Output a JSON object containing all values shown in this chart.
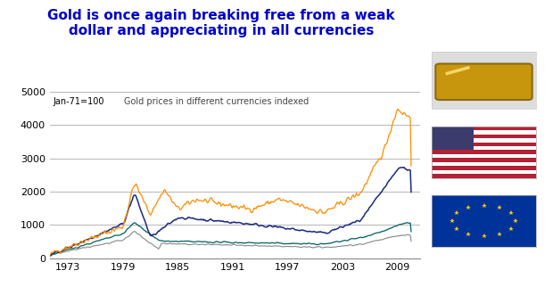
{
  "title": "Gold is once again breaking free from a weak\ndollar and appreciating in all currencies",
  "title_color": "#0000CC",
  "subtitle": "Gold prices in different currencies indexed",
  "index_label": "Jan-71=100",
  "xlabel_ticks": [
    1973,
    1979,
    1985,
    1991,
    1997,
    2003,
    2009
  ],
  "ylim": [
    0,
    5000
  ],
  "yticks": [
    0,
    1000,
    2000,
    3000,
    4000,
    5000
  ],
  "colors": {
    "orange": "#FF8C00",
    "blue": "#1B2A80",
    "teal": "#006060",
    "gray": "#888888"
  },
  "bg_color": "#FFFFFF",
  "plot_bg_color": "#FFFFFF",
  "grid_color": "#AAAAAA"
}
